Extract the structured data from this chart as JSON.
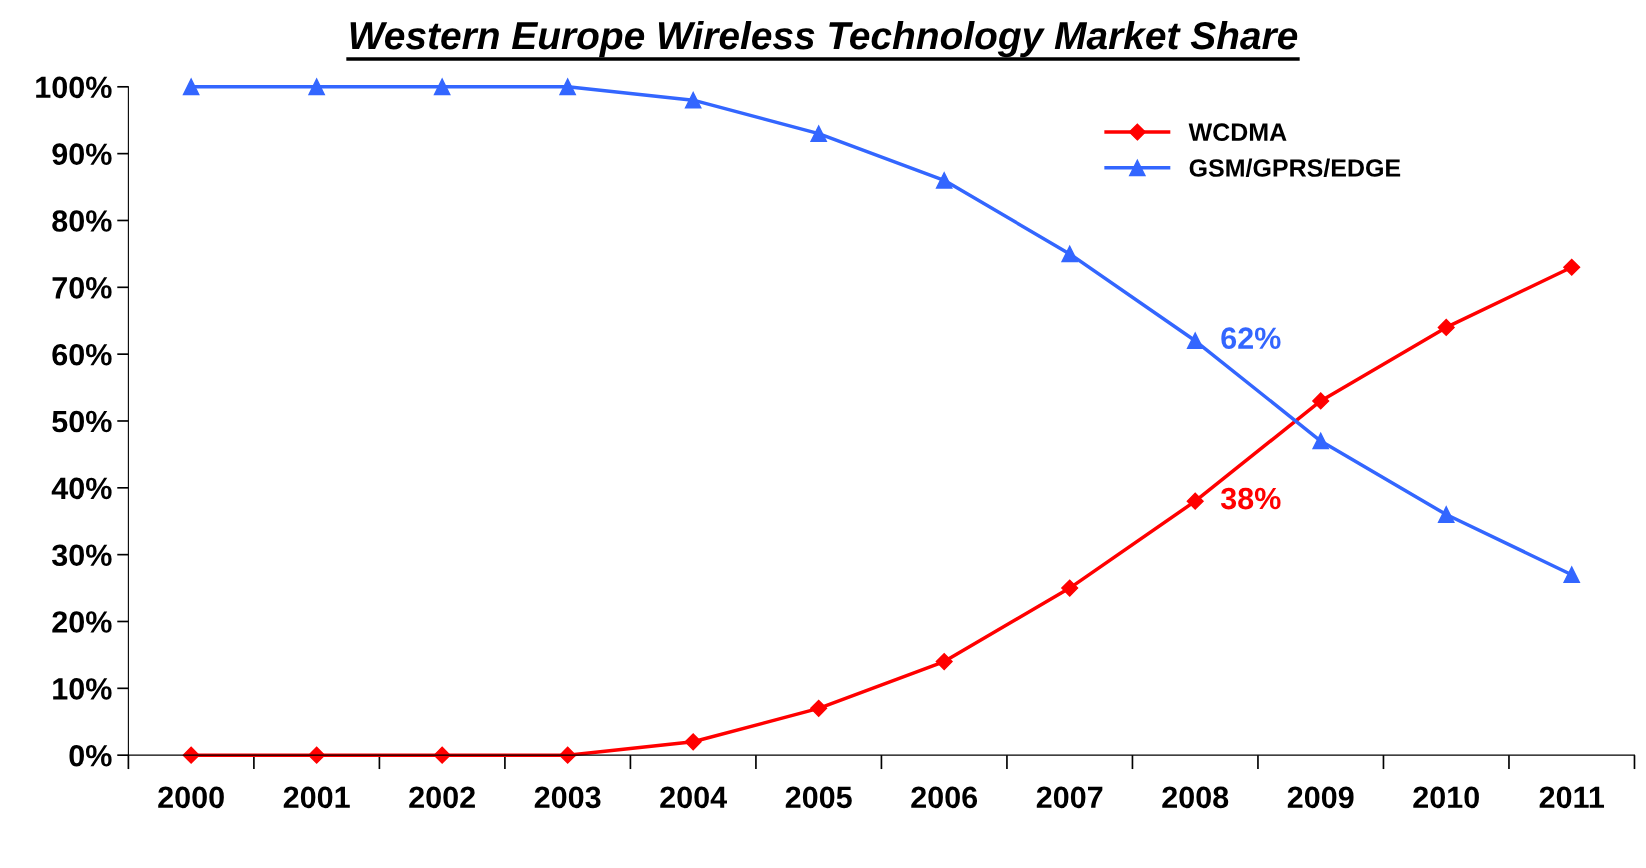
{
  "chart_data": {
    "type": "line",
    "title": "Western Europe Wireless Technology Market Share",
    "categories": [
      "2000",
      "2001",
      "2002",
      "2003",
      "2004",
      "2005",
      "2006",
      "2007",
      "2008",
      "2009",
      "2010",
      "2011"
    ],
    "series": [
      {
        "name": "WCDMA",
        "color": "#ff0000",
        "marker": "diamond",
        "values": [
          0,
          0,
          0,
          0,
          2,
          7,
          14,
          25,
          38,
          53,
          64,
          73
        ]
      },
      {
        "name": "GSM/GPRS/EDGE",
        "color": "#3366ff",
        "marker": "triangle",
        "values": [
          100,
          100,
          100,
          100,
          98,
          93,
          86,
          75,
          62,
          47,
          36,
          27
        ]
      }
    ],
    "ylim": [
      0,
      100
    ],
    "yticks": [
      {
        "value": 0,
        "label": "0%"
      },
      {
        "value": 10,
        "label": "10%"
      },
      {
        "value": 20,
        "label": "20%"
      },
      {
        "value": 30,
        "label": "30%"
      },
      {
        "value": 40,
        "label": "40%"
      },
      {
        "value": 50,
        "label": "50%"
      },
      {
        "value": 60,
        "label": "60%"
      },
      {
        "value": 70,
        "label": "70%"
      },
      {
        "value": 80,
        "label": "80%"
      },
      {
        "value": 90,
        "label": "90%"
      },
      {
        "value": 100,
        "label": "100%"
      }
    ],
    "annotations": [
      {
        "text": "62%",
        "x": "2008",
        "y": 62
      },
      {
        "text": "38%",
        "x": "2008",
        "y": 38
      }
    ],
    "grid": false,
    "legend": "top right"
  }
}
